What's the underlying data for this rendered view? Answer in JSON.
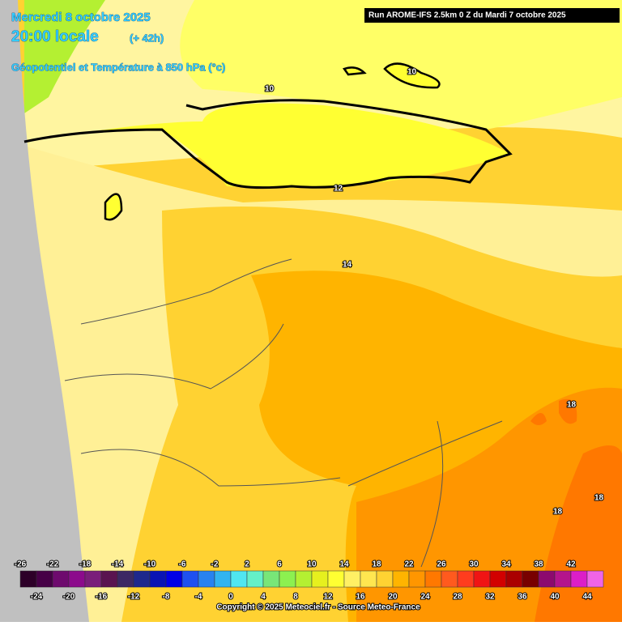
{
  "header": {
    "date": "Mercredi 8 octobre 2025",
    "time": "20:00 locale",
    "lead": "(+ 42h)",
    "parameter": "Géopotentiel et Température à 850 hPa (°c)",
    "run": "Run AROME-IFS 2.5km 0 Z du Mardi 7 octobre 2025"
  },
  "contour_labels": [
    "10",
    "10",
    "12",
    "14",
    "18",
    "18",
    "18"
  ],
  "legend": {
    "values": [
      -26,
      -24,
      -22,
      -20,
      -18,
      -16,
      -14,
      -12,
      -10,
      -8,
      -6,
      -4,
      -2,
      0,
      2,
      4,
      6,
      8,
      10,
      12,
      14,
      16,
      18,
      20,
      22,
      24,
      26,
      28,
      30,
      32,
      34,
      36,
      38,
      40,
      42,
      44
    ],
    "colors": [
      "#2d0028",
      "#460046",
      "#6e0a6e",
      "#8c0a8c",
      "#7a1e7a",
      "#5a1450",
      "#3c2864",
      "#1e288c",
      "#0a14b4",
      "#0000e6",
      "#1e50f0",
      "#2882f0",
      "#32b4f0",
      "#50e6f0",
      "#64f0c8",
      "#78e678",
      "#8cf050",
      "#b4f032",
      "#e6f01e",
      "#ffff32",
      "#fff064",
      "#ffe650",
      "#ffd232",
      "#ffb400",
      "#ff9600",
      "#ff7800",
      "#ff5a1e",
      "#ff3c1e",
      "#f01414",
      "#d20000",
      "#aa0000",
      "#780000",
      "#8c0a6e",
      "#b4148c",
      "#dc1ec8",
      "#f064e6"
    ]
  },
  "footer": {
    "copyright": "Copyright © 2025 Meteociel.fr - Source Meteo-France"
  }
}
